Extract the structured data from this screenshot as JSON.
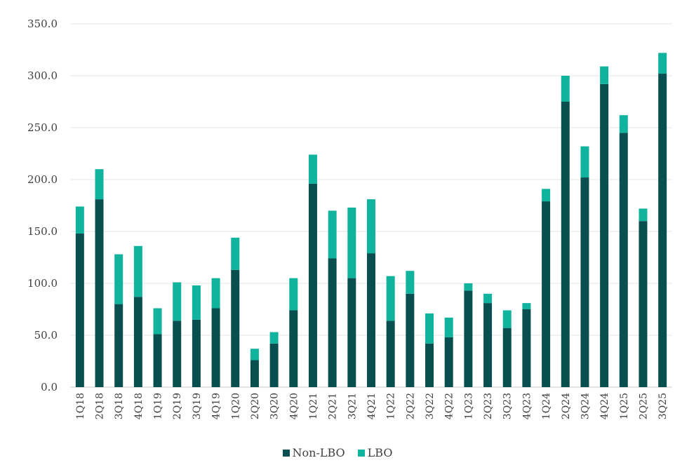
{
  "chart_data": {
    "type": "bar",
    "stacked": true,
    "title": "",
    "xlabel": "",
    "ylabel": "",
    "ylim": [
      0,
      350
    ],
    "yticks": [
      "0.0",
      "50.0",
      "100.0",
      "150.0",
      "200.0",
      "250.0",
      "300.0",
      "350.0"
    ],
    "grid": true,
    "legend_position": "bottom",
    "categories": [
      "1Q18",
      "2Q18",
      "3Q18",
      "4Q18",
      "1Q19",
      "2Q19",
      "3Q19",
      "4Q19",
      "1Q20",
      "2Q20",
      "3Q20",
      "4Q20",
      "1Q21",
      "2Q21",
      "3Q21",
      "4Q21",
      "1Q22",
      "2Q22",
      "3Q22",
      "4Q22",
      "1Q23",
      "2Q23",
      "3Q23",
      "4Q23",
      "1Q24",
      "2Q24",
      "3Q24",
      "4Q24",
      "1Q25",
      "2Q25",
      "3Q25"
    ],
    "series": [
      {
        "name": "Non-LBO",
        "color": "#0a4f4f",
        "values": [
          148,
          181,
          80,
          87,
          51,
          64,
          65,
          76,
          113,
          26,
          42,
          74,
          196,
          124,
          105,
          129,
          64,
          90,
          42,
          48,
          93,
          81,
          57,
          75,
          179,
          275,
          202,
          292,
          245,
          160,
          302
        ]
      },
      {
        "name": "LBO",
        "color": "#10b39d",
        "values": [
          26,
          29,
          48,
          49,
          25,
          37,
          33,
          29,
          31,
          11,
          11,
          31,
          28,
          46,
          68,
          52,
          43,
          22,
          29,
          19,
          7,
          9,
          17,
          6,
          12,
          25,
          30,
          17,
          17,
          12,
          20
        ]
      }
    ]
  }
}
